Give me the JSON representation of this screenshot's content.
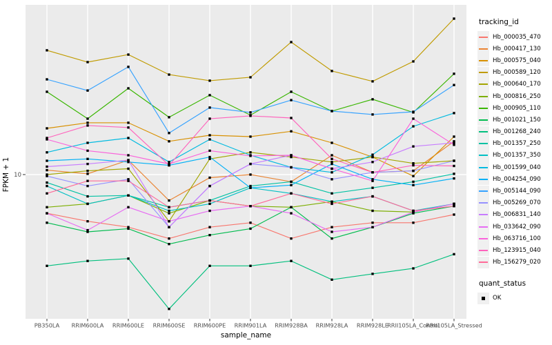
{
  "figure": {
    "y_axis": {
      "title": "FPKM + 1",
      "tick_label": "10"
    },
    "x_axis": {
      "title": "sample_name"
    },
    "legend": {
      "tracking_title": "tracking_id",
      "quant_title": "quant_status",
      "quant_label": "OK"
    },
    "colors": {
      "panel_bg": "#EBEBEB",
      "grid": "#FFFFFF",
      "tick_text": "#4D4D4D",
      "axis_text": "#000000",
      "point": "#000000",
      "legend_key_bg": "#F0F0F0"
    }
  },
  "chart_data": {
    "type": "line",
    "title": "",
    "xlabel": "sample_name",
    "ylabel": "FPKM + 1",
    "y_scale": "log10",
    "y_ticks": [
      10
    ],
    "ylim": [
      1.5,
      93
    ],
    "grid": true,
    "legend_position": "right",
    "point_marker": "black-square",
    "x": [
      "PB350LA",
      "RRIM600LA",
      "RRIM600LE",
      "RRIM600SE",
      "RRIM600PE",
      "RRIM901LA",
      "RRIM928BA",
      "RRIM928LA",
      "RRIM928LE",
      "RRII105LA_Control",
      "RRII105LA_Stressed"
    ],
    "series": [
      {
        "name": "Hb_000035_470",
        "color": "#F8766D",
        "values": [
          6.0,
          5.4,
          5.0,
          4.3,
          5.0,
          5.3,
          4.3,
          5.0,
          5.3,
          5.3,
          5.9
        ]
      },
      {
        "name": "Hb_000417_130",
        "color": "#EA8331",
        "values": [
          10.6,
          10.1,
          12.1,
          7.1,
          9.6,
          10.0,
          9.1,
          12.9,
          10.3,
          10.5,
          15.5
        ]
      },
      {
        "name": "Hb_000575_040",
        "color": "#D89000",
        "values": [
          18.4,
          19.8,
          19.8,
          15.5,
          16.8,
          16.5,
          17.7,
          15.2,
          12.6,
          9.8,
          16.5
        ]
      },
      {
        "name": "Hb_000589_120",
        "color": "#C09B00",
        "values": [
          51.5,
          44.1,
          48.7,
          37.4,
          34.5,
          36.1,
          57.4,
          39.2,
          34.2,
          44.5,
          78.2
        ]
      },
      {
        "name": "Hb_000640_170",
        "color": "#A3A500",
        "values": [
          10.0,
          10.5,
          10.8,
          5.4,
          12.3,
          13.4,
          12.6,
          11.8,
          12.6,
          11.6,
          12.0
        ]
      },
      {
        "name": "Hb_000816_250",
        "color": "#7CAE00",
        "values": [
          6.5,
          6.8,
          7.6,
          6.0,
          7.1,
          6.6,
          6.5,
          7.0,
          6.2,
          6.1,
          6.8
        ]
      },
      {
        "name": "Hb_000905_110",
        "color": "#39B600",
        "values": [
          29.8,
          20.9,
          31.2,
          21.3,
          28.5,
          21.9,
          29.8,
          23.1,
          27.0,
          22.7,
          37.8
        ]
      },
      {
        "name": "Hb_001021_150",
        "color": "#00BB4E",
        "values": [
          5.3,
          4.7,
          4.9,
          4.0,
          4.5,
          4.9,
          6.5,
          4.3,
          5.0,
          6.0,
          6.6
        ]
      },
      {
        "name": "Hb_001268_240",
        "color": "#00BF7D",
        "values": [
          3.0,
          3.2,
          3.3,
          1.7,
          3.0,
          3.0,
          3.2,
          2.5,
          2.7,
          2.9,
          3.5
        ]
      },
      {
        "name": "Hb_001357_250",
        "color": "#00C1A3",
        "values": [
          9.0,
          7.5,
          7.6,
          6.5,
          7.1,
          8.6,
          9.1,
          7.8,
          8.4,
          9.1,
          10.1
        ]
      },
      {
        "name": "Hb_001357_350",
        "color": "#00BFC4",
        "values": [
          8.6,
          6.8,
          7.6,
          6.2,
          6.8,
          8.4,
          7.8,
          7.0,
          7.5,
          6.2,
          6.8
        ]
      },
      {
        "name": "Hb_001599_040",
        "color": "#00BAE0",
        "values": [
          13.4,
          15.2,
          16.2,
          11.8,
          15.9,
          12.9,
          11.0,
          10.3,
          13.0,
          18.9,
          22.5
        ]
      },
      {
        "name": "Hb_004254_090",
        "color": "#00B0F6",
        "values": [
          12.0,
          12.3,
          11.8,
          11.3,
          12.6,
          8.4,
          8.7,
          11.5,
          9.4,
          8.7,
          9.5
        ]
      },
      {
        "name": "Hb_005144_090",
        "color": "#35A2FF",
        "values": [
          35.1,
          30.3,
          41.4,
          17.3,
          24.2,
          22.7,
          26.7,
          23.1,
          22.1,
          22.9,
          32.6
        ]
      },
      {
        "name": "Hb_005269_070",
        "color": "#9590FF",
        "values": [
          9.8,
          8.6,
          9.4,
          5.0,
          8.6,
          11.5,
          11.0,
          9.4,
          10.3,
          10.5,
          12.0
        ]
      },
      {
        "name": "Hb_006831_140",
        "color": "#C77CFF",
        "values": [
          11.1,
          11.5,
          12.1,
          5.0,
          8.6,
          11.5,
          12.9,
          10.8,
          11.8,
          14.5,
          15.2
        ]
      },
      {
        "name": "Hb_033642_090",
        "color": "#E76BF3",
        "values": [
          6.0,
          4.8,
          6.5,
          5.4,
          6.2,
          6.6,
          6.0,
          4.7,
          5.0,
          6.1,
          6.8
        ]
      },
      {
        "name": "Hb_063716_100",
        "color": "#FA62DB",
        "values": [
          15.9,
          13.7,
          12.9,
          11.5,
          13.7,
          12.8,
          12.9,
          10.8,
          9.2,
          20.9,
          14.8
        ]
      },
      {
        "name": "Hb_123915_040",
        "color": "#FF62BC",
        "values": [
          16.2,
          19.1,
          18.6,
          11.3,
          20.9,
          21.7,
          21.1,
          12.3,
          10.3,
          11.3,
          11.2
        ]
      },
      {
        "name": "Hb_156279_020",
        "color": "#FF6A98",
        "values": [
          7.8,
          9.2,
          9.2,
          6.5,
          7.1,
          6.6,
          7.8,
          6.8,
          7.5,
          6.2,
          6.6
        ]
      }
    ]
  }
}
